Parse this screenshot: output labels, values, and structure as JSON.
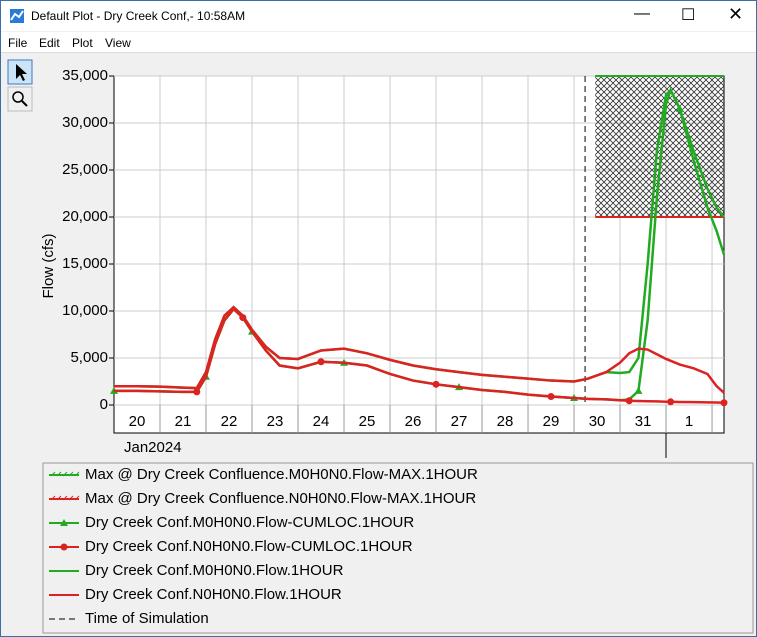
{
  "window_title": "Default Plot - Dry Creek Conf,- 10:58AM",
  "menu": [
    "File",
    "Edit",
    "Plot",
    "View"
  ],
  "chart_data": {
    "type": "line",
    "ylabel": "Flow (cfs)",
    "xlabel": "Jan2024",
    "ylim": [
      0,
      35000
    ],
    "yticks": [
      0,
      {
        "value": 5000,
        "label": "5,000"
      },
      {
        "value": 10000,
        "label": "10,000"
      },
      {
        "value": 15000,
        "label": "15,000"
      },
      {
        "value": 20000,
        "label": "20,000"
      },
      {
        "value": 25000,
        "label": "25,000"
      },
      {
        "value": 30000,
        "label": "30,000"
      },
      {
        "value": 35000,
        "label": "35,000"
      }
    ],
    "xlim": [
      0,
      13.26
    ],
    "xticks": [
      {
        "value": 0.5,
        "label": "20"
      },
      {
        "value": 1.5,
        "label": "21"
      },
      {
        "value": 2.5,
        "label": "22"
      },
      {
        "value": 3.5,
        "label": "23"
      },
      {
        "value": 4.5,
        "label": "24"
      },
      {
        "value": 5.5,
        "label": "25"
      },
      {
        "value": 6.5,
        "label": "26"
      },
      {
        "value": 7.5,
        "label": "27"
      },
      {
        "value": 8.5,
        "label": "28"
      },
      {
        "value": 9.5,
        "label": "29"
      },
      {
        "value": 10.5,
        "label": "30"
      },
      {
        "value": 11.5,
        "label": "31"
      },
      {
        "value": 12.5,
        "label": "1"
      }
    ],
    "xgrid": [
      1,
      2,
      3,
      4,
      5,
      6,
      7,
      8,
      9,
      10,
      11,
      12,
      13
    ],
    "grid": true,
    "x": [
      0,
      0.5,
      1,
      1.5,
      1.8,
      2.0,
      2.2,
      2.4,
      2.6,
      2.8,
      3.0,
      3.3,
      3.6,
      4.0,
      4.5,
      5.0,
      5.5,
      6.0,
      6.5,
      7.0,
      7.5,
      8.0,
      8.5,
      9.0,
      9.5,
      10.0,
      10.3,
      10.7,
      11.0,
      11.2,
      11.4,
      11.6,
      11.8,
      12.0,
      12.1,
      12.3,
      12.6,
      12.9,
      13.1,
      13.26
    ],
    "max_series": [
      {
        "name": "Max @ Dry Creek Confluence.M0H0N0.Flow-MAX.1HOUR",
        "color": "#22aa22",
        "x": [
          10.46,
          13.26
        ],
        "values": [
          35000,
          35000
        ]
      },
      {
        "name": "Max @ Dry Creek Confluence.N0H0N0.Flow-MAX.1HOUR",
        "color": "#dd2222",
        "x": [
          10.46,
          13.26
        ],
        "values": [
          20000,
          20000
        ]
      }
    ],
    "series": [
      {
        "name": "Dry Creek Conf.M0H0N0.Flow-CUMLOC.1HOUR",
        "color": "#22aa22",
        "marker": "triangle",
        "values": [
          1500,
          1500,
          1450,
          1400,
          1400,
          3000,
          6500,
          9000,
          10200,
          9300,
          7800,
          5800,
          4200,
          3900,
          4600,
          4500,
          4200,
          3300,
          2600,
          2200,
          1900,
          1600,
          1400,
          1100,
          900,
          750,
          650,
          600,
          500,
          600,
          1500,
          9000,
          22000,
          32000,
          33500,
          31500,
          26000,
          21000,
          18500,
          16000
        ]
      },
      {
        "name": "Dry Creek Conf.N0H0N0.Flow-CUMLOC.1HOUR",
        "color": "#dd2222",
        "marker": "circle",
        "values": [
          1500,
          1500,
          1450,
          1400,
          1400,
          3000,
          6500,
          9000,
          10200,
          9300,
          7800,
          5800,
          4200,
          3900,
          4600,
          4500,
          4200,
          3300,
          2600,
          2200,
          1900,
          1600,
          1400,
          1100,
          900,
          750,
          650,
          600,
          500,
          450,
          420,
          400,
          380,
          350,
          340,
          320,
          300,
          280,
          260,
          240
        ]
      },
      {
        "name": "Dry Creek Conf.M0H0N0.Flow.1HOUR",
        "color": "#22aa22",
        "marker": "none",
        "values": [
          2000,
          2000,
          1950,
          1850,
          1800,
          3500,
          7000,
          9500,
          10400,
          9500,
          8000,
          6200,
          5000,
          4900,
          5800,
          6000,
          5500,
          4800,
          4200,
          3800,
          3500,
          3200,
          3000,
          2800,
          2600,
          2500,
          2800,
          3500,
          3400,
          3500,
          5000,
          15000,
          27000,
          33000,
          33500,
          31500,
          27000,
          23000,
          21000,
          20000
        ]
      },
      {
        "name": "Dry Creek Conf.N0H0N0.Flow.1HOUR",
        "color": "#dd2222",
        "marker": "none",
        "values": [
          2000,
          2000,
          1950,
          1850,
          1800,
          3500,
          7000,
          9500,
          10400,
          9500,
          8000,
          6200,
          5000,
          4900,
          5800,
          6000,
          5500,
          4800,
          4200,
          3800,
          3500,
          3200,
          3000,
          2800,
          2600,
          2500,
          2800,
          3500,
          4500,
          5500,
          6000,
          5900,
          5400,
          4900,
          4700,
          4300,
          3900,
          3300,
          2000,
          1300
        ]
      }
    ],
    "sim_line": {
      "name": "Time of Simulation",
      "x": 10.24
    }
  }
}
